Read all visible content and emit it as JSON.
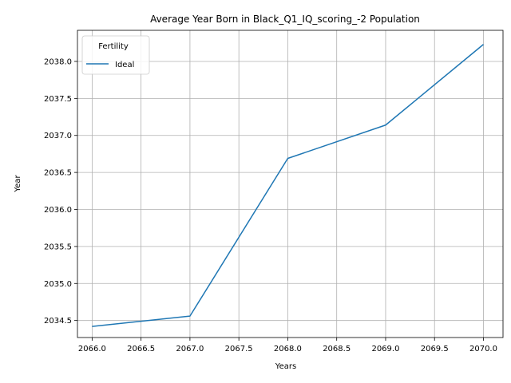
{
  "chart_data": {
    "type": "line",
    "title": "Average Year Born in Black_Q1_IQ_scoring_-2 Population",
    "xlabel": "Years",
    "ylabel": "Year",
    "xlim": [
      2065.85,
      2070.2
    ],
    "ylim": [
      2034.27,
      2038.42
    ],
    "xticks": [
      2066.0,
      2066.5,
      2067.0,
      2067.5,
      2068.0,
      2068.5,
      2069.0,
      2069.5,
      2070.0
    ],
    "xtick_labels": [
      "2066.0",
      "2066.5",
      "2067.0",
      "2067.5",
      "2068.0",
      "2068.5",
      "2069.0",
      "2069.5",
      "2070.0"
    ],
    "yticks": [
      2034.5,
      2035.0,
      2035.5,
      2036.0,
      2036.5,
      2037.0,
      2037.5,
      2038.0
    ],
    "ytick_labels": [
      "2034.5",
      "2035.0",
      "2035.5",
      "2036.0",
      "2036.5",
      "2037.0",
      "2037.5",
      "2038.0"
    ],
    "grid": true,
    "legend": {
      "title": "Fertility",
      "position": "top-left"
    },
    "series": [
      {
        "name": "Ideal",
        "color": "#1f77b4",
        "x": [
          2066,
          2067,
          2068,
          2069,
          2070
        ],
        "y": [
          2034.42,
          2034.56,
          2036.69,
          2037.14,
          2038.23
        ]
      }
    ]
  }
}
